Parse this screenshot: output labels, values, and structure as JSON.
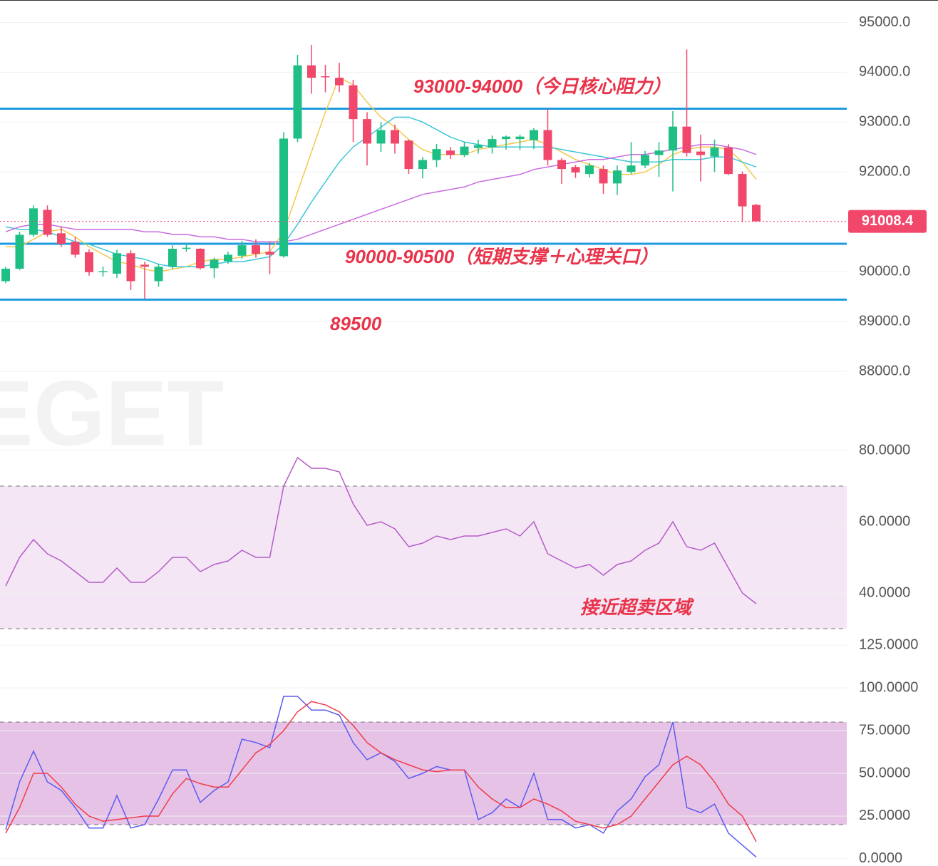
{
  "chart_data": [
    {
      "type": "candlestick",
      "open": [
        89810,
        90060,
        90740,
        91240,
        90770,
        90600,
        90390,
        90000,
        89960,
        90370,
        90140,
        89810,
        90100,
        90470,
        90460,
        90070,
        90210,
        90320,
        90530,
        90400,
        90310,
        92670,
        94140,
        93920,
        93890,
        93740,
        93060,
        92570,
        92840,
        92630,
        92060,
        92240,
        92430,
        92340,
        92480,
        92490,
        92660,
        92660,
        92640,
        92840,
        92240,
        92100,
        91960,
        92060,
        91770,
        92000,
        92130,
        92340,
        92430,
        92910,
        92410,
        92310,
        92490,
        91960,
        91340
      ],
      "high": [
        90100,
        90800,
        91330,
        91330,
        90900,
        90700,
        90450,
        90100,
        90440,
        90430,
        90200,
        90150,
        90530,
        90570,
        90470,
        90280,
        90400,
        90620,
        90650,
        90600,
        92800,
        94350,
        94550,
        94150,
        94190,
        93850,
        93200,
        93000,
        92950,
        92650,
        92300,
        92560,
        92500,
        92600,
        92650,
        92730,
        92730,
        92750,
        92880,
        93270,
        92280,
        92140,
        92180,
        92130,
        92130,
        92600,
        92420,
        92600,
        93220,
        94460,
        92750,
        92650,
        92560,
        92010,
        91360
      ],
      "low": [
        89770,
        90030,
        90700,
        90700,
        90500,
        90280,
        89920,
        89900,
        89870,
        89630,
        89460,
        89700,
        90050,
        90400,
        90040,
        89870,
        90160,
        90260,
        90280,
        89950,
        90280,
        92600,
        93570,
        93600,
        93600,
        92600,
        92130,
        92400,
        92370,
        91960,
        91870,
        92100,
        92260,
        92300,
        92370,
        92370,
        92450,
        92440,
        92460,
        92130,
        91760,
        91880,
        91890,
        91560,
        91540,
        91960,
        92080,
        91900,
        91610,
        92310,
        91810,
        92000,
        91940,
        91000,
        91000
      ],
      "close": [
        90060,
        90740,
        91270,
        90740,
        90560,
        90340,
        89990,
        90010,
        90370,
        89810,
        90100,
        90100,
        90460,
        90480,
        90070,
        90240,
        90340,
        90530,
        90360,
        90340,
        92670,
        94140,
        93890,
        93910,
        93740,
        93060,
        92570,
        92840,
        92570,
        92060,
        92240,
        92460,
        92340,
        92510,
        92540,
        92660,
        92710,
        92710,
        92840,
        92240,
        92060,
        91990,
        92130,
        91770,
        92030,
        92130,
        92340,
        92430,
        92910,
        92380,
        92340,
        92490,
        91960,
        91310,
        91010
      ],
      "up_color": "#1dbf84",
      "down_color": "#f0476a",
      "series": [
        {
          "color": "#f2c94c",
          "values": [
            90500,
            90500,
            90650,
            90800,
            90850,
            90700,
            90500,
            90350,
            90200,
            90150,
            90050,
            90000,
            90050,
            90100,
            90200,
            90250,
            90250,
            90300,
            90350,
            90400,
            90800,
            91600,
            92400,
            93200,
            93900,
            93750,
            93400,
            93100,
            92900,
            92650,
            92450,
            92350,
            92350,
            92350,
            92450,
            92500,
            92550,
            92600,
            92650,
            92550,
            92400,
            92250,
            92150,
            92050,
            91950,
            91950,
            92000,
            92150,
            92350,
            92450,
            92500,
            92500,
            92450,
            92200,
            91850
          ]
        },
        {
          "color": "#3cc6d8",
          "values": [
            90900,
            90850,
            90850,
            90800,
            90700,
            90600,
            90550,
            90450,
            90350,
            90300,
            90250,
            90150,
            90100,
            90100,
            90100,
            90150,
            90200,
            90200,
            90250,
            90300,
            90550,
            90950,
            91400,
            91800,
            92200,
            92500,
            92700,
            92900,
            93100,
            93100,
            93000,
            92850,
            92700,
            92600,
            92550,
            92500,
            92500,
            92500,
            92500,
            92500,
            92450,
            92400,
            92350,
            92300,
            92250,
            92200,
            92200,
            92200,
            92250,
            92250,
            92250,
            92300,
            92300,
            92200,
            92100
          ]
        },
        {
          "color": "#c86be0",
          "values": [
            90800,
            90900,
            90950,
            90950,
            90900,
            90850,
            90850,
            90850,
            90850,
            90850,
            90800,
            90800,
            90750,
            90750,
            90700,
            90700,
            90650,
            90650,
            90600,
            90600,
            90600,
            90650,
            90750,
            90850,
            90950,
            91050,
            91150,
            91250,
            91350,
            91450,
            91550,
            91600,
            91650,
            91700,
            91800,
            91850,
            91900,
            91950,
            92050,
            92100,
            92150,
            92200,
            92250,
            92250,
            92300,
            92350,
            92350,
            92400,
            92450,
            92500,
            92550,
            92550,
            92500,
            92450,
            92350
          ]
        }
      ],
      "levels": [
        93270,
        90560,
        89440
      ],
      "level_color": "#1e9be0",
      "last_price": 91008.4,
      "last_color": "#f0476a",
      "annotations": [
        "93000-94000（今日核心阻力）",
        "90000-90500（短期支撑＋心理关口）",
        "89500"
      ],
      "watermark": "EGET",
      "ylim": [
        87300,
        95450
      ],
      "yticks": [
        {
          "value": 95000,
          "label": "95000.0"
        },
        {
          "value": 94000,
          "label": "94000.0"
        },
        {
          "value": 93000,
          "label": "93000.0"
        },
        {
          "value": 92000,
          "label": "92000.0"
        },
        {
          "value": 90000,
          "label": "90000.0"
        },
        {
          "value": 89000,
          "label": "89000.0"
        },
        {
          "value": 88000,
          "label": "88000.0"
        }
      ]
    },
    {
      "type": "line",
      "series": [
        {
          "color": "#b45cc8",
          "values": [
            42,
            50,
            55,
            51,
            49,
            46,
            43,
            43,
            47,
            43,
            43,
            46,
            50,
            50,
            46,
            48,
            49,
            52,
            50,
            50,
            70,
            78,
            75,
            75,
            74,
            65,
            59,
            60,
            58,
            53,
            54,
            56,
            55,
            56,
            56,
            57,
            58,
            56,
            60,
            51,
            49,
            47,
            48,
            45,
            48,
            49,
            52,
            54,
            60,
            53,
            52,
            54,
            47,
            40,
            37
          ]
        }
      ],
      "band": [
        30,
        70
      ],
      "band_color": "#f5e6f5",
      "annotations": [
        "接近超卖区域"
      ],
      "ylim": [
        27.4,
        84.4
      ],
      "yticks": [
        {
          "value": 80,
          "label": "80.0000"
        },
        {
          "value": 60,
          "label": "60.0000"
        },
        {
          "value": 40,
          "label": "40.0000"
        }
      ]
    },
    {
      "type": "line",
      "series": [
        {
          "color": "#5b5bf0",
          "values": [
            17,
            45,
            63,
            45,
            40,
            30,
            18,
            18,
            37,
            18,
            20,
            35,
            52,
            52,
            33,
            40,
            45,
            70,
            68,
            65,
            95,
            95,
            87,
            87,
            84,
            68,
            58,
            62,
            57,
            47,
            50,
            54,
            52,
            52,
            23,
            27,
            35,
            30,
            50,
            23,
            23,
            18,
            20,
            15,
            28,
            35,
            48,
            55,
            80,
            30,
            27,
            32,
            15,
            8,
            1
          ]
        },
        {
          "color": "#f03c4a",
          "values": [
            15,
            30,
            50,
            50,
            42,
            32,
            25,
            22,
            23,
            24,
            25,
            25,
            38,
            47,
            44,
            42,
            42,
            52,
            62,
            67,
            75,
            86,
            92,
            90,
            86,
            78,
            68,
            62,
            58,
            55,
            52,
            51,
            52,
            52,
            42,
            35,
            30,
            30,
            35,
            32,
            28,
            22,
            20,
            18,
            20,
            25,
            35,
            45,
            55,
            60,
            55,
            45,
            32,
            25,
            10
          ]
        }
      ],
      "band": [
        20,
        80
      ],
      "band_color": "#e6c3e6",
      "ylim": [
        -4.2,
        129.2
      ],
      "yticks": [
        {
          "value": 125,
          "label": "125.0000"
        },
        {
          "value": 100,
          "label": "100.0000"
        },
        {
          "value": 75,
          "label": "75.0000"
        },
        {
          "value": 50,
          "label": "50.0000"
        },
        {
          "value": 25,
          "label": "25.0000"
        },
        {
          "value": 0,
          "label": "0.0000"
        }
      ]
    }
  ]
}
